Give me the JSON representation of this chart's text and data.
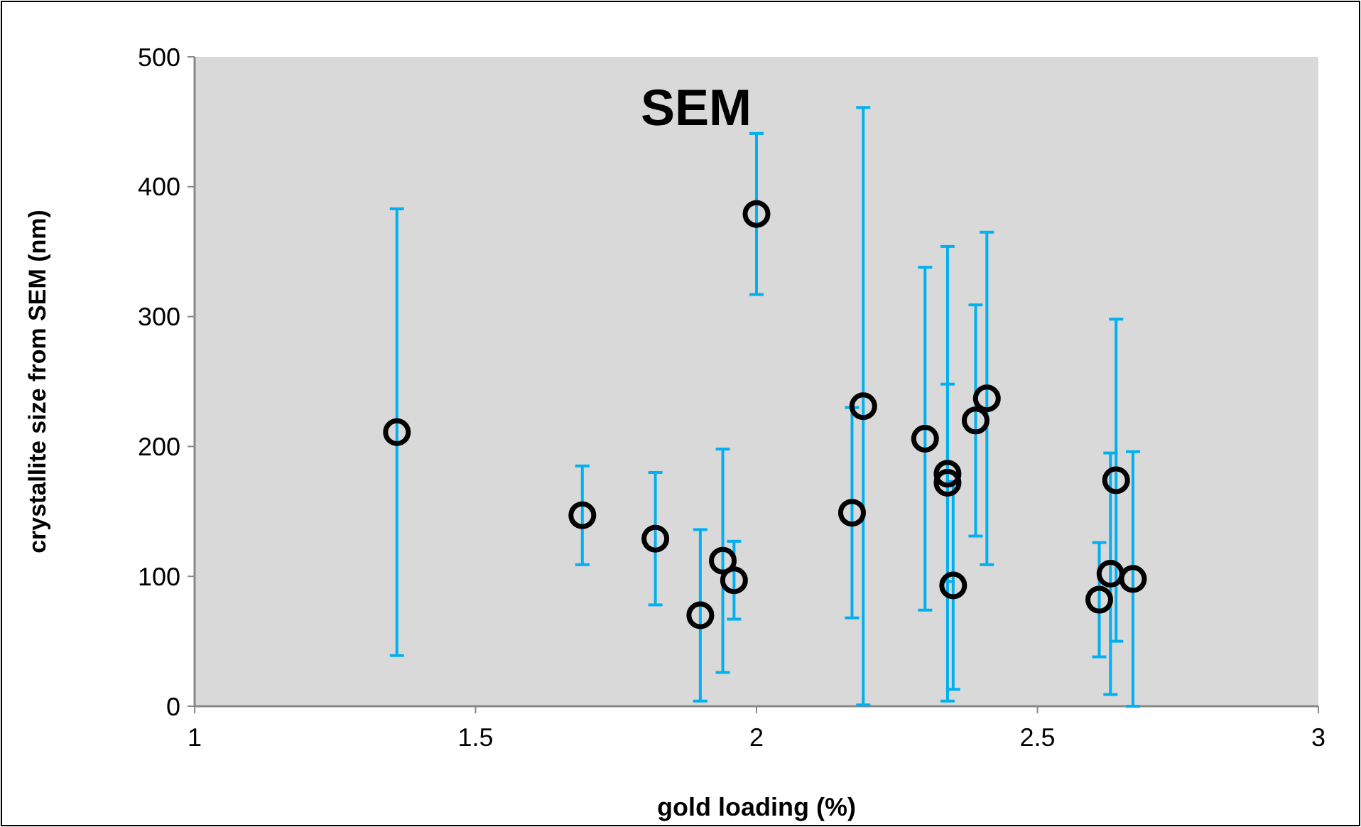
{
  "chart_data": {
    "type": "scatter",
    "title": "SEM",
    "xlabel": "gold loading (%)",
    "ylabel": "crystallite size from SEM (nm)",
    "xlim": [
      1,
      3
    ],
    "xticks": [
      1,
      1.5,
      2,
      2.5,
      3
    ],
    "ylim": [
      0,
      500
    ],
    "yticks": [
      0,
      100,
      200,
      300,
      400,
      500
    ],
    "grid": false,
    "marker": "circle",
    "series": [
      {
        "color": "#000000",
        "x": [
          1.36,
          1.69,
          1.82,
          1.9,
          1.94,
          1.96,
          2.0,
          2.17,
          2.19,
          2.3,
          2.34,
          2.34,
          2.35,
          2.39,
          2.41,
          2.61,
          2.63,
          2.64,
          2.67
        ],
        "values": [
          211,
          147,
          129,
          70,
          112,
          97,
          379,
          149,
          231,
          206,
          179,
          172,
          93,
          220,
          237,
          82,
          102,
          174,
          98
        ],
        "errors": [
          172,
          38,
          51,
          66,
          86,
          30,
          62,
          81,
          230,
          132,
          175,
          76,
          80,
          89,
          128,
          44,
          93,
          124,
          98
        ]
      }
    ]
  }
}
